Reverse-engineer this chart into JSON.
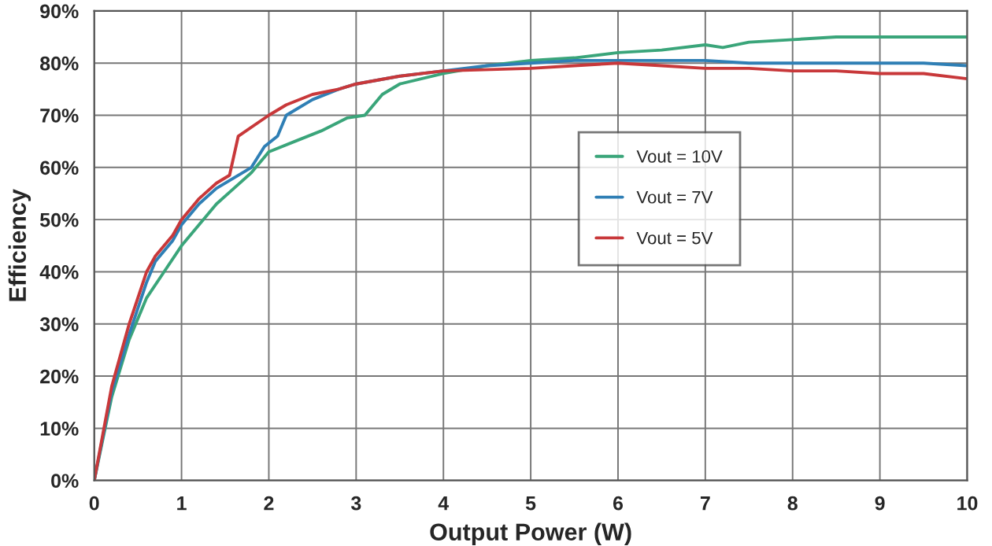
{
  "chart_data": {
    "type": "line",
    "xlabel": "Output Power (W)",
    "ylabel": "Efficiency",
    "xlim": [
      0,
      10
    ],
    "xticks": [
      0,
      1,
      2,
      3,
      4,
      5,
      6,
      7,
      8,
      9,
      10
    ],
    "ylim": [
      0,
      90
    ],
    "yticks": [
      {
        "value": 0,
        "label": "0%"
      },
      {
        "value": 10,
        "label": "10%"
      },
      {
        "value": 20,
        "label": "20%"
      },
      {
        "value": 30,
        "label": "30%"
      },
      {
        "value": 40,
        "label": "40%"
      },
      {
        "value": 50,
        "label": "50%"
      },
      {
        "value": 60,
        "label": "60%"
      },
      {
        "value": 70,
        "label": "70%"
      },
      {
        "value": 80,
        "label": "80%"
      },
      {
        "value": 90,
        "label": "90%"
      }
    ],
    "grid": true,
    "legend": "right",
    "marker": "none",
    "line_style": "solid",
    "series": [
      {
        "name": "Vout = 10V",
        "color": "#3aa57a",
        "x": [
          0,
          0.2,
          0.4,
          0.6,
          0.8,
          1.0,
          1.2,
          1.4,
          1.6,
          1.8,
          2.0,
          2.3,
          2.6,
          2.9,
          3.1,
          3.3,
          3.5,
          4,
          4.5,
          5,
          5.5,
          6,
          6.5,
          7,
          7.2,
          7.5,
          8,
          8.5,
          9,
          9.5,
          10
        ],
        "values": [
          0,
          16,
          27,
          35,
          40,
          45,
          49,
          53,
          56,
          59,
          63,
          65,
          67,
          69.5,
          70,
          74,
          76,
          78,
          79.5,
          80.5,
          81,
          82,
          82.5,
          83.5,
          83,
          84,
          84.5,
          85,
          85,
          85,
          85
        ]
      },
      {
        "name": "Vout = 7V",
        "color": "#2f7fb5",
        "x": [
          0,
          0.2,
          0.4,
          0.6,
          0.7,
          0.9,
          1.0,
          1.2,
          1.4,
          1.6,
          1.8,
          1.95,
          2.1,
          2.2,
          2.5,
          2.8,
          3,
          3.5,
          4,
          4.5,
          5,
          5.5,
          6,
          6.5,
          7,
          7.5,
          8,
          8.5,
          9,
          9.5,
          10
        ],
        "values": [
          0,
          17,
          28,
          38,
          42,
          46,
          49,
          53,
          56,
          58,
          60,
          64,
          66,
          70,
          73,
          75,
          76,
          77.5,
          78.5,
          79.5,
          80,
          80.5,
          80.5,
          80.5,
          80.5,
          80,
          80,
          80,
          80,
          80,
          79.5
        ]
      },
      {
        "name": "Vout = 5V",
        "color": "#c8383a",
        "x": [
          0,
          0.2,
          0.4,
          0.6,
          0.7,
          0.9,
          1.0,
          1.2,
          1.4,
          1.55,
          1.65,
          2.0,
          2.2,
          2.5,
          2.8,
          3,
          3.5,
          4,
          5,
          5.5,
          6,
          6.5,
          7,
          7.5,
          8,
          8.5,
          9,
          9.5,
          10
        ],
        "values": [
          0,
          18,
          30,
          40,
          43,
          47,
          50,
          54,
          57,
          58.5,
          66,
          70,
          72,
          74,
          75,
          76,
          77.5,
          78.5,
          79,
          79.5,
          80,
          79.5,
          79,
          79,
          78.5,
          78.5,
          78,
          78,
          77
        ]
      }
    ]
  }
}
